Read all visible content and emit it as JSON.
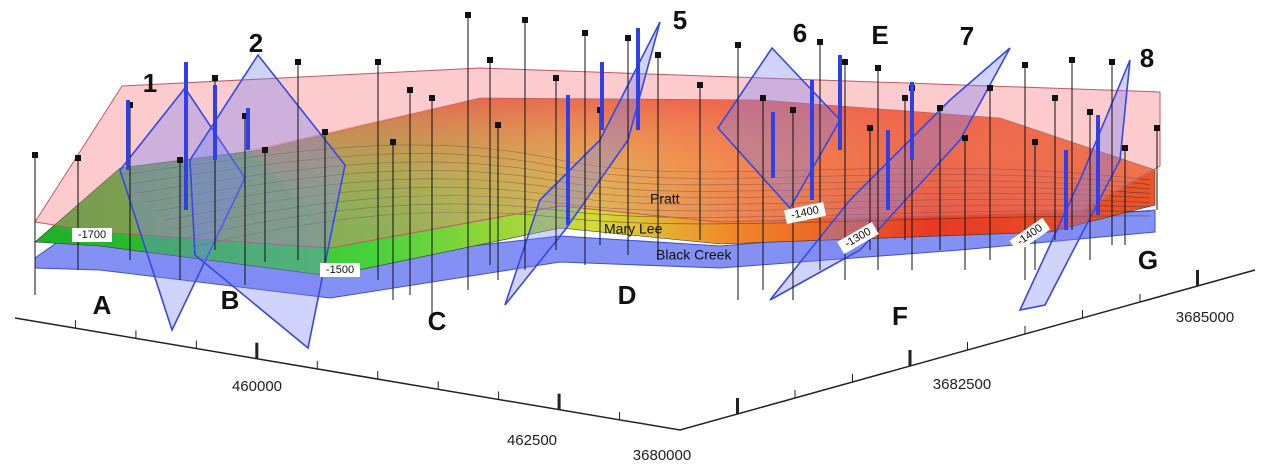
{
  "fault_labels": [
    "1",
    "2",
    "5",
    "6",
    "7",
    "8"
  ],
  "block_labels": [
    "A",
    "B",
    "C",
    "D",
    "E",
    "F",
    "G"
  ],
  "layer_labels": [
    "Pratt",
    "Mary Lee",
    "Black Creek"
  ],
  "contour_labels": [
    "-1700",
    "-1500",
    "-1400",
    "-1300",
    "-1400"
  ],
  "x_axis_labels": [
    "460000",
    "462500"
  ],
  "y_axis_labels": [
    "3680000",
    "3682500",
    "3685000"
  ]
}
